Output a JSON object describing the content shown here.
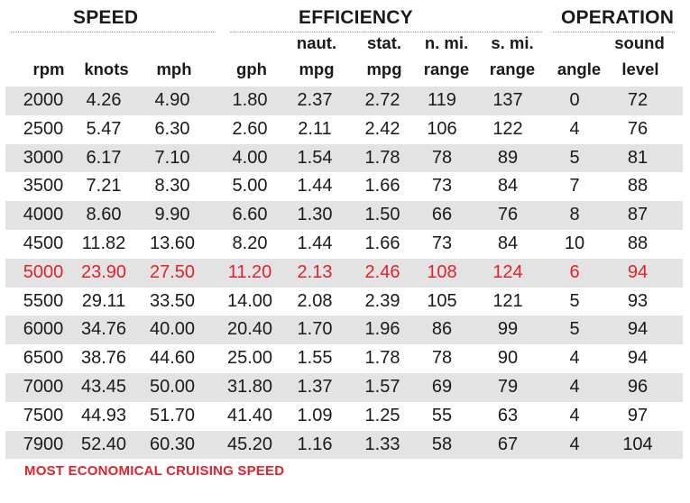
{
  "groups": {
    "speed": "SPEED",
    "efficiency": "EFFICIENCY",
    "operation": "OPERATION"
  },
  "headers": {
    "top": {
      "naut_mpg": "naut.",
      "stat_mpg": "stat.",
      "n_range": "n. mi.",
      "s_range": "s. mi.",
      "sound": "sound"
    },
    "bottom": {
      "rpm": "rpm",
      "knots": "knots",
      "mph": "mph",
      "gph": "gph",
      "naut_mpg": "mpg",
      "stat_mpg": "mpg",
      "n_range": "range",
      "s_range": "range",
      "angle": "angle",
      "sound": "level"
    }
  },
  "rows": [
    {
      "rpm": "2000",
      "knots": "4.26",
      "mph": "4.90",
      "gph": "1.80",
      "naut_mpg": "2.37",
      "stat_mpg": "2.72",
      "n_range": "119",
      "s_range": "137",
      "angle": "0",
      "sound": "72"
    },
    {
      "rpm": "2500",
      "knots": "5.47",
      "mph": "6.30",
      "gph": "2.60",
      "naut_mpg": "2.11",
      "stat_mpg": "2.42",
      "n_range": "106",
      "s_range": "122",
      "angle": "4",
      "sound": "76"
    },
    {
      "rpm": "3000",
      "knots": "6.17",
      "mph": "7.10",
      "gph": "4.00",
      "naut_mpg": "1.54",
      "stat_mpg": "1.78",
      "n_range": "78",
      "s_range": "89",
      "angle": "5",
      "sound": "81"
    },
    {
      "rpm": "3500",
      "knots": "7.21",
      "mph": "8.30",
      "gph": "5.00",
      "naut_mpg": "1.44",
      "stat_mpg": "1.66",
      "n_range": "73",
      "s_range": "84",
      "angle": "7",
      "sound": "88"
    },
    {
      "rpm": "4000",
      "knots": "8.60",
      "mph": "9.90",
      "gph": "6.60",
      "naut_mpg": "1.30",
      "stat_mpg": "1.50",
      "n_range": "66",
      "s_range": "76",
      "angle": "8",
      "sound": "87"
    },
    {
      "rpm": "4500",
      "knots": "11.82",
      "mph": "13.60",
      "gph": "8.20",
      "naut_mpg": "1.44",
      "stat_mpg": "1.66",
      "n_range": "73",
      "s_range": "84",
      "angle": "10",
      "sound": "88"
    },
    {
      "rpm": "5000",
      "knots": "23.90",
      "mph": "27.50",
      "gph": "11.20",
      "naut_mpg": "2.13",
      "stat_mpg": "2.46",
      "n_range": "108",
      "s_range": "124",
      "angle": "6",
      "sound": "94"
    },
    {
      "rpm": "5500",
      "knots": "29.11",
      "mph": "33.50",
      "gph": "14.00",
      "naut_mpg": "2.08",
      "stat_mpg": "2.39",
      "n_range": "105",
      "s_range": "121",
      "angle": "5",
      "sound": "93"
    },
    {
      "rpm": "6000",
      "knots": "34.76",
      "mph": "40.00",
      "gph": "20.40",
      "naut_mpg": "1.70",
      "stat_mpg": "1.96",
      "n_range": "86",
      "s_range": "99",
      "angle": "5",
      "sound": "94"
    },
    {
      "rpm": "6500",
      "knots": "38.76",
      "mph": "44.60",
      "gph": "25.00",
      "naut_mpg": "1.55",
      "stat_mpg": "1.78",
      "n_range": "78",
      "s_range": "90",
      "angle": "4",
      "sound": "94"
    },
    {
      "rpm": "7000",
      "knots": "43.45",
      "mph": "50.00",
      "gph": "31.80",
      "naut_mpg": "1.37",
      "stat_mpg": "1.57",
      "n_range": "69",
      "s_range": "79",
      "angle": "4",
      "sound": "96"
    },
    {
      "rpm": "7500",
      "knots": "44.93",
      "mph": "51.70",
      "gph": "41.40",
      "naut_mpg": "1.09",
      "stat_mpg": "1.25",
      "n_range": "55",
      "s_range": "63",
      "angle": "4",
      "sound": "97"
    },
    {
      "rpm": "7900",
      "knots": "52.40",
      "mph": "60.30",
      "gph": "45.20",
      "naut_mpg": "1.16",
      "stat_mpg": "1.33",
      "n_range": "58",
      "s_range": "67",
      "angle": "4",
      "sound": "104"
    }
  ],
  "highlight_row": 6,
  "highlight_color": "#e0222f",
  "shade_color": "#e3e3e3",
  "footnote": "MOST ECONOMICAL CRUISING SPEED"
}
